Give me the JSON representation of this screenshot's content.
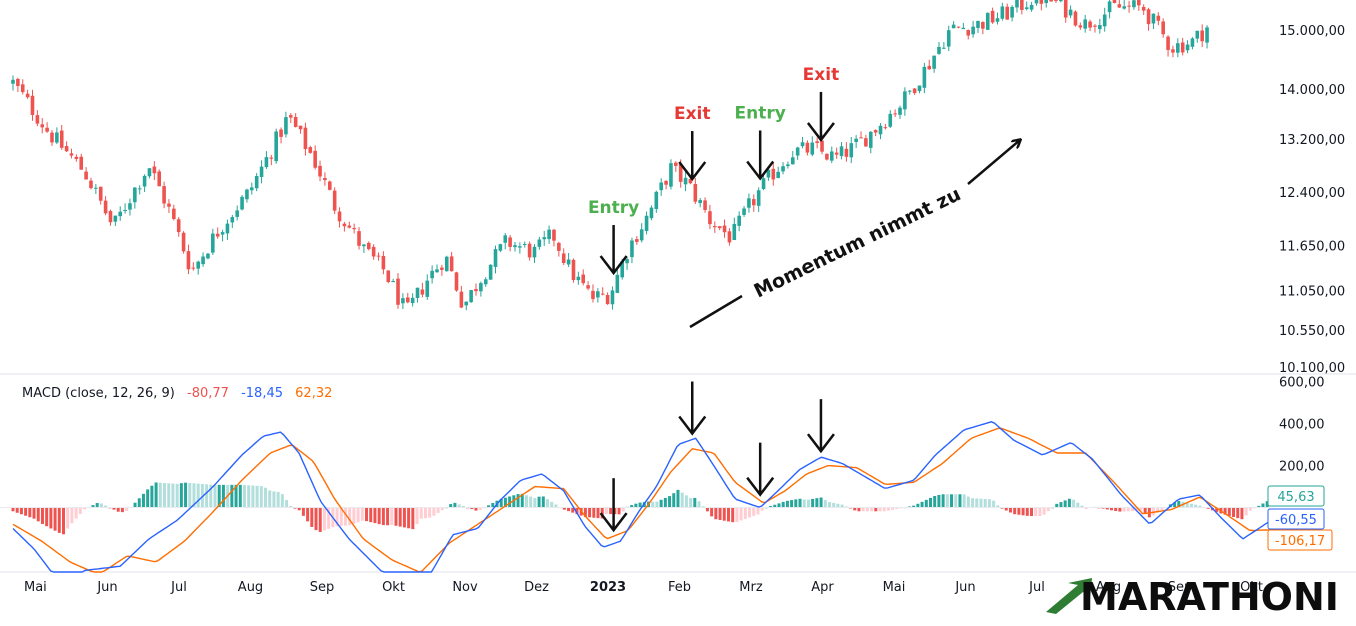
{
  "chart_data": [
    {
      "type": "candlestick",
      "price_axis": {
        "ticks": [
          15000,
          14000,
          13200,
          12400,
          11650,
          11050,
          10550,
          10100
        ],
        "tick_labels": [
          "15.000,00",
          "14.000,00",
          "13.200,00",
          "12.400,00",
          "11.650,00",
          "11.050,00",
          "10.550,00",
          "10.100,00"
        ],
        "scale": "log"
      },
      "x_labels": [
        "Mai",
        "Jun",
        "Jul",
        "Aug",
        "Sep",
        "Okt",
        "Nov",
        "Dez",
        "2023",
        "Feb",
        "Mrz",
        "Apr",
        "Mai",
        "Jun",
        "Jul",
        "Aug",
        "Sep",
        "Okt"
      ],
      "close_path": [
        {
          "x": 0.0,
          "y": 14100
        },
        {
          "x": 0.5,
          "y": 13300
        },
        {
          "x": 1.0,
          "y": 12700
        },
        {
          "x": 1.4,
          "y": 11900
        },
        {
          "x": 1.9,
          "y": 12800
        },
        {
          "x": 2.2,
          "y": 12100
        },
        {
          "x": 2.5,
          "y": 11300
        },
        {
          "x": 2.9,
          "y": 11900
        },
        {
          "x": 3.3,
          "y": 12400
        },
        {
          "x": 3.6,
          "y": 13000
        },
        {
          "x": 3.85,
          "y": 13550
        },
        {
          "x": 4.2,
          "y": 12900
        },
        {
          "x": 4.5,
          "y": 12200
        },
        {
          "x": 4.9,
          "y": 11600
        },
        {
          "x": 5.2,
          "y": 11300
        },
        {
          "x": 5.5,
          "y": 10750
        },
        {
          "x": 5.8,
          "y": 11200
        },
        {
          "x": 6.05,
          "y": 11500
        },
        {
          "x": 6.3,
          "y": 10850
        },
        {
          "x": 6.6,
          "y": 11300
        },
        {
          "x": 6.9,
          "y": 11700
        },
        {
          "x": 7.3,
          "y": 11550
        },
        {
          "x": 7.55,
          "y": 11800
        },
        {
          "x": 7.8,
          "y": 11300
        },
        {
          "x": 8.1,
          "y": 10950
        },
        {
          "x": 8.35,
          "y": 11000
        },
        {
          "x": 8.6,
          "y": 11600
        },
        {
          "x": 8.9,
          "y": 12100
        },
        {
          "x": 9.2,
          "y": 12750
        },
        {
          "x": 9.45,
          "y": 12500
        },
        {
          "x": 9.75,
          "y": 12000
        },
        {
          "x": 10.05,
          "y": 11750
        },
        {
          "x": 10.3,
          "y": 12200
        },
        {
          "x": 10.6,
          "y": 12650
        },
        {
          "x": 10.9,
          "y": 13000
        },
        {
          "x": 11.2,
          "y": 13050
        },
        {
          "x": 11.5,
          "y": 12900
        },
        {
          "x": 11.8,
          "y": 13100
        },
        {
          "x": 12.1,
          "y": 13400
        },
        {
          "x": 12.45,
          "y": 13800
        },
        {
          "x": 12.8,
          "y": 14400
        },
        {
          "x": 13.1,
          "y": 15000
        },
        {
          "x": 13.5,
          "y": 15100
        },
        {
          "x": 13.9,
          "y": 15300
        },
        {
          "x": 14.3,
          "y": 15600
        },
        {
          "x": 14.6,
          "y": 15500
        },
        {
          "x": 15.0,
          "y": 15100
        },
        {
          "x": 15.4,
          "y": 15400
        },
        {
          "x": 15.8,
          "y": 15400
        },
        {
          "x": 16.2,
          "y": 14700
        },
        {
          "x": 16.5,
          "y": 14800
        },
        {
          "x": 16.7,
          "y": 15050
        }
      ],
      "annotations": [
        {
          "label": "Entry",
          "kind": "entry",
          "x": 8.4
        },
        {
          "label": "Exit",
          "kind": "exit",
          "x": 9.5
        },
        {
          "label": "Entry",
          "kind": "entry",
          "x": 10.45
        },
        {
          "label": "Exit",
          "kind": "exit",
          "x": 11.3
        }
      ],
      "trend_text": "Momentum nimmt zu"
    },
    {
      "type": "macd",
      "legend": {
        "name": "MACD (close, 12, 26, 9)",
        "histogram": "-80,77",
        "macd": "-18,45",
        "signal": "62,32"
      },
      "axis": {
        "ticks": [
          600,
          400,
          200
        ],
        "tick_labels": [
          "600,00",
          "400,00",
          "200,00"
        ],
        "ylim": [
          -300,
          600
        ]
      },
      "last_values": {
        "histogram": "45,63",
        "macd": "-60,55",
        "signal": "-106,17"
      },
      "macd_line": [
        {
          "x": 0.0,
          "y": -100
        },
        {
          "x": 0.3,
          "y": -200
        },
        {
          "x": 0.7,
          "y": -380
        },
        {
          "x": 1.0,
          "y": -300
        },
        {
          "x": 1.5,
          "y": -280
        },
        {
          "x": 1.9,
          "y": -150
        },
        {
          "x": 2.3,
          "y": -60
        },
        {
          "x": 2.8,
          "y": 100
        },
        {
          "x": 3.2,
          "y": 250
        },
        {
          "x": 3.5,
          "y": 340
        },
        {
          "x": 3.75,
          "y": 360
        },
        {
          "x": 4.0,
          "y": 260
        },
        {
          "x": 4.3,
          "y": 30
        },
        {
          "x": 4.7,
          "y": -150
        },
        {
          "x": 5.2,
          "y": -320
        },
        {
          "x": 5.6,
          "y": -410
        },
        {
          "x": 5.85,
          "y": -310
        },
        {
          "x": 6.15,
          "y": -130
        },
        {
          "x": 6.5,
          "y": -100
        },
        {
          "x": 6.8,
          "y": 30
        },
        {
          "x": 7.1,
          "y": 130
        },
        {
          "x": 7.4,
          "y": 160
        },
        {
          "x": 7.7,
          "y": 80
        },
        {
          "x": 8.0,
          "y": -90
        },
        {
          "x": 8.25,
          "y": -190
        },
        {
          "x": 8.5,
          "y": -160
        },
        {
          "x": 8.75,
          "y": -20
        },
        {
          "x": 9.0,
          "y": 100
        },
        {
          "x": 9.3,
          "y": 300
        },
        {
          "x": 9.55,
          "y": 330
        },
        {
          "x": 9.8,
          "y": 200
        },
        {
          "x": 10.1,
          "y": 40
        },
        {
          "x": 10.45,
          "y": 0
        },
        {
          "x": 10.7,
          "y": 80
        },
        {
          "x": 11.0,
          "y": 180
        },
        {
          "x": 11.3,
          "y": 240
        },
        {
          "x": 11.6,
          "y": 210
        },
        {
          "x": 11.9,
          "y": 150
        },
        {
          "x": 12.2,
          "y": 90
        },
        {
          "x": 12.6,
          "y": 130
        },
        {
          "x": 12.9,
          "y": 250
        },
        {
          "x": 13.3,
          "y": 370
        },
        {
          "x": 13.7,
          "y": 410
        },
        {
          "x": 14.0,
          "y": 320
        },
        {
          "x": 14.4,
          "y": 250
        },
        {
          "x": 14.8,
          "y": 310
        },
        {
          "x": 15.1,
          "y": 230
        },
        {
          "x": 15.5,
          "y": 60
        },
        {
          "x": 15.9,
          "y": -80
        },
        {
          "x": 16.3,
          "y": 40
        },
        {
          "x": 16.6,
          "y": 60
        },
        {
          "x": 16.9,
          "y": -50
        },
        {
          "x": 17.2,
          "y": -150
        },
        {
          "x": 17.6,
          "y": -60
        }
      ],
      "signal_line": [
        {
          "x": 0.0,
          "y": -80
        },
        {
          "x": 0.4,
          "y": -160
        },
        {
          "x": 0.8,
          "y": -260
        },
        {
          "x": 1.2,
          "y": -320
        },
        {
          "x": 1.6,
          "y": -230
        },
        {
          "x": 2.0,
          "y": -260
        },
        {
          "x": 2.4,
          "y": -160
        },
        {
          "x": 2.8,
          "y": -20
        },
        {
          "x": 3.2,
          "y": 130
        },
        {
          "x": 3.6,
          "y": 260
        },
        {
          "x": 3.9,
          "y": 300
        },
        {
          "x": 4.2,
          "y": 220
        },
        {
          "x": 4.5,
          "y": 40
        },
        {
          "x": 4.9,
          "y": -150
        },
        {
          "x": 5.3,
          "y": -250
        },
        {
          "x": 5.7,
          "y": -310
        },
        {
          "x": 6.1,
          "y": -170
        },
        {
          "x": 6.5,
          "y": -80
        },
        {
          "x": 6.9,
          "y": 10
        },
        {
          "x": 7.3,
          "y": 100
        },
        {
          "x": 7.7,
          "y": 90
        },
        {
          "x": 8.0,
          "y": -40
        },
        {
          "x": 8.3,
          "y": -150
        },
        {
          "x": 8.6,
          "y": -110
        },
        {
          "x": 8.9,
          "y": 20
        },
        {
          "x": 9.2,
          "y": 170
        },
        {
          "x": 9.5,
          "y": 280
        },
        {
          "x": 9.8,
          "y": 260
        },
        {
          "x": 10.1,
          "y": 120
        },
        {
          "x": 10.5,
          "y": 20
        },
        {
          "x": 10.8,
          "y": 80
        },
        {
          "x": 11.1,
          "y": 160
        },
        {
          "x": 11.4,
          "y": 200
        },
        {
          "x": 11.8,
          "y": 190
        },
        {
          "x": 12.2,
          "y": 110
        },
        {
          "x": 12.6,
          "y": 120
        },
        {
          "x": 13.0,
          "y": 210
        },
        {
          "x": 13.4,
          "y": 330
        },
        {
          "x": 13.8,
          "y": 380
        },
        {
          "x": 14.2,
          "y": 330
        },
        {
          "x": 14.6,
          "y": 260
        },
        {
          "x": 15.0,
          "y": 260
        },
        {
          "x": 15.4,
          "y": 120
        },
        {
          "x": 15.8,
          "y": -30
        },
        {
          "x": 16.2,
          "y": -10
        },
        {
          "x": 16.6,
          "y": 50
        },
        {
          "x": 17.0,
          "y": -40
        },
        {
          "x": 17.3,
          "y": -110
        },
        {
          "x": 17.6,
          "y": -106
        }
      ],
      "arrow_x": [
        8.4,
        9.5,
        10.45,
        11.3
      ]
    }
  ],
  "watermark": "MARATHONI",
  "colors": {
    "up": "#26a69a",
    "down": "#ef5350",
    "macd": "#2962ff",
    "signal": "#ff6d00",
    "hist_pos_strong": "#26a69a",
    "hist_pos_weak": "#b2dfdb",
    "hist_neg_strong": "#ef5350",
    "hist_neg_weak": "#ffcdd2",
    "entry": "#4caf50",
    "exit": "#e53935",
    "logo_green": "#2e7d32"
  }
}
